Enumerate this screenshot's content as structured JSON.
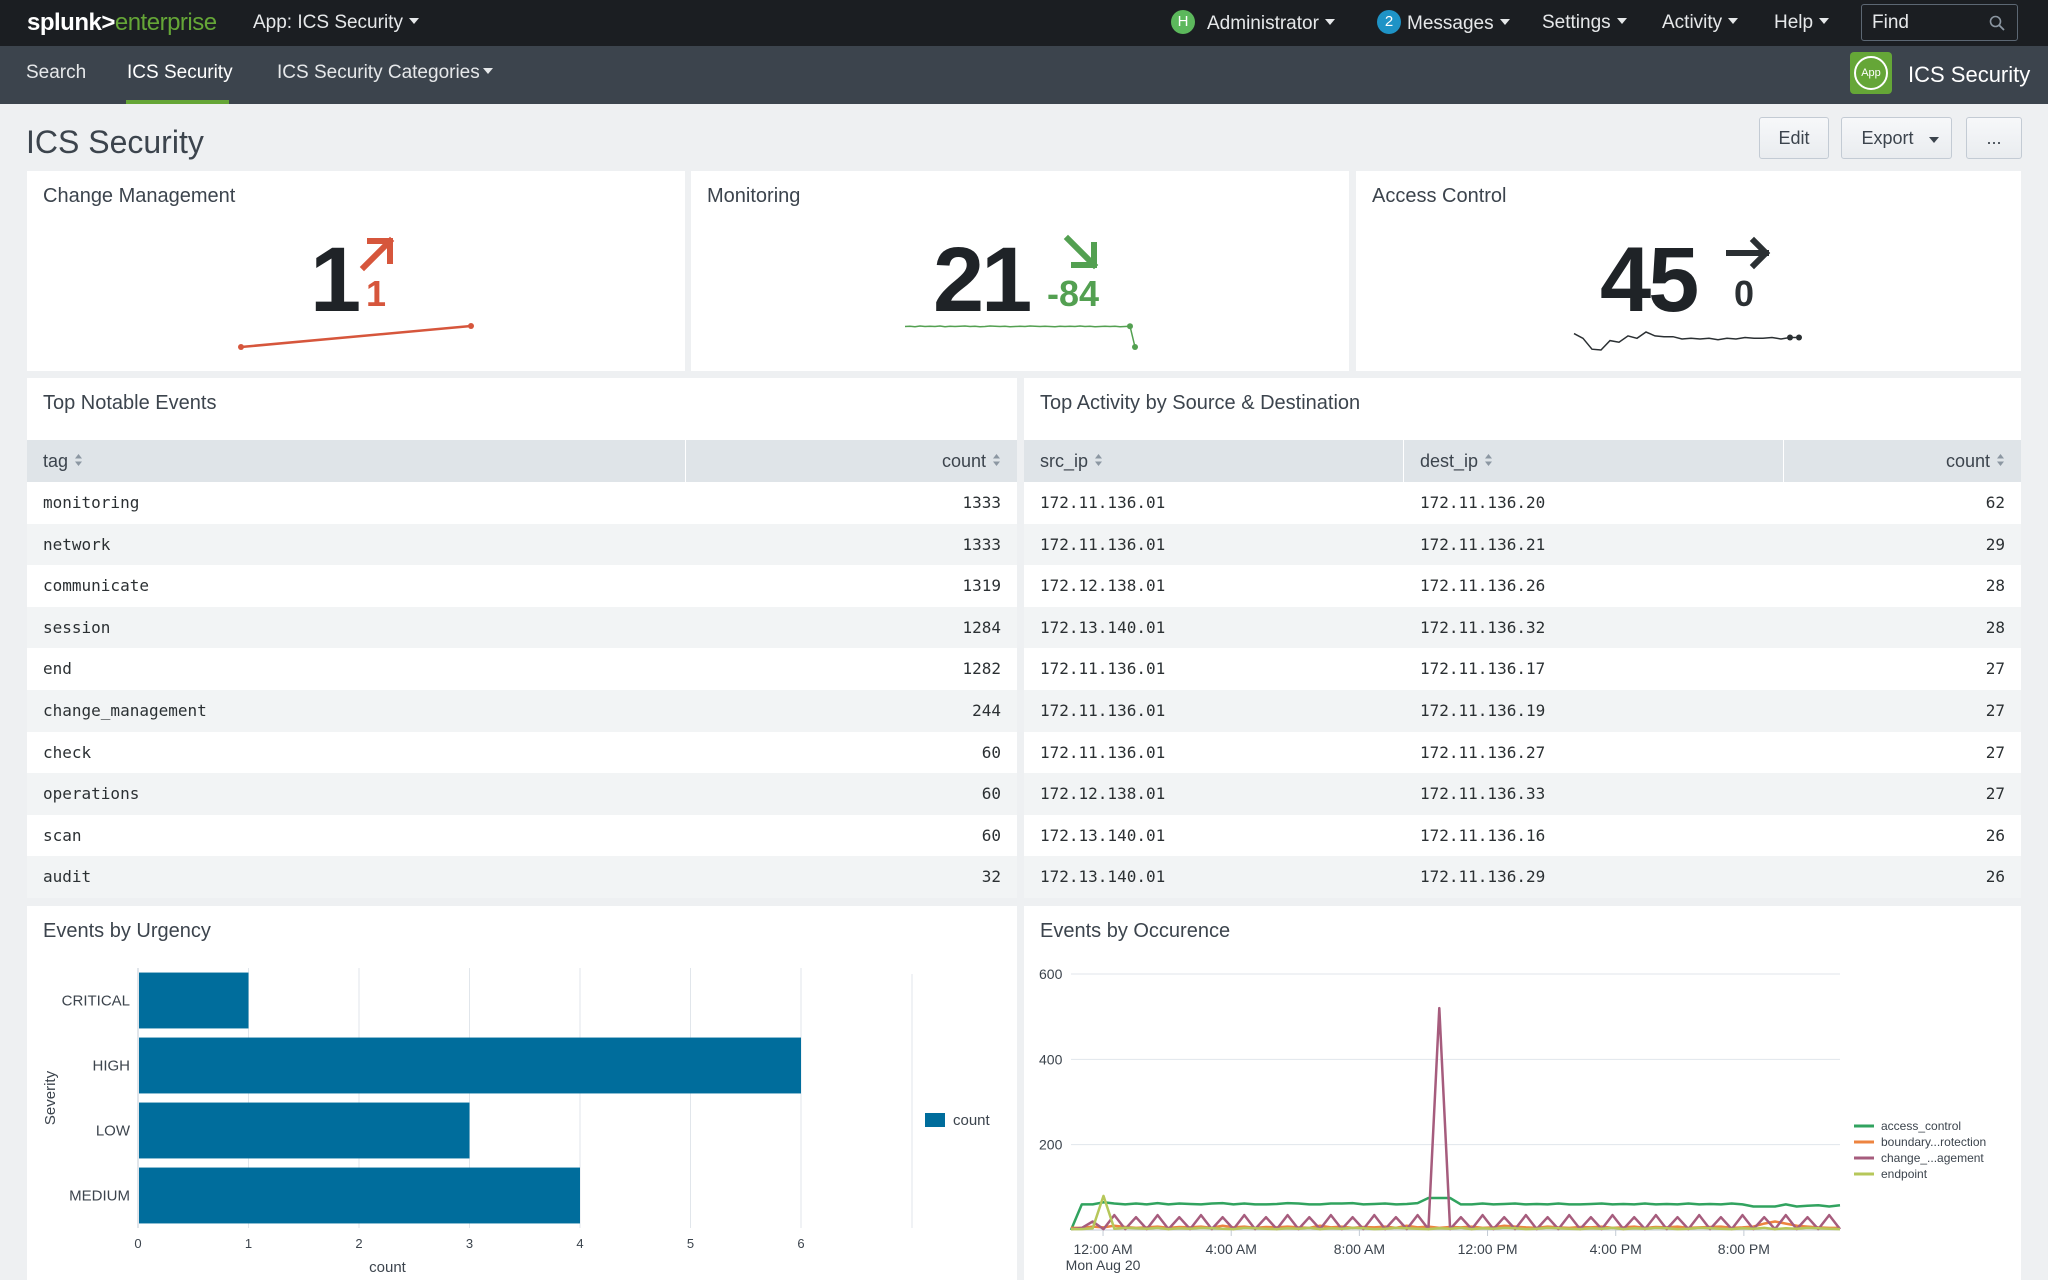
{
  "topbar": {
    "logo_main": "splunk>",
    "logo_sub": "enterprise",
    "app_menu": "App: ICS Security",
    "user_initial": "H",
    "user": "Administrator",
    "messages_count": "2",
    "messages": "Messages",
    "settings": "Settings",
    "activity": "Activity",
    "help": "Help",
    "find_placeholder": "Find"
  },
  "appbar": {
    "nav": [
      "Search",
      "ICS Security",
      "ICS Security Categories"
    ],
    "app_icon_label": "App",
    "app_title": "ICS Security"
  },
  "header": {
    "title": "ICS Security",
    "edit": "Edit",
    "export": "Export",
    "more": "..."
  },
  "single_values": [
    {
      "title": "Change Management",
      "value": "1",
      "delta": "1",
      "trend": "up",
      "color": "#d6563c",
      "sparkline": [
        1,
        2
      ]
    },
    {
      "title": "Monitoring",
      "value": "21",
      "delta": "-84",
      "trend": "down",
      "color": "#53a051",
      "sparkline": [
        104,
        105,
        103,
        106,
        104,
        105,
        104,
        106,
        103,
        105,
        104,
        105,
        106,
        104,
        105,
        103,
        104,
        106,
        105,
        104,
        105,
        103,
        104,
        105,
        104,
        106,
        105,
        104,
        105,
        104,
        103,
        105,
        104,
        105,
        104,
        106,
        104,
        105,
        103,
        104,
        105,
        104,
        105,
        103,
        104,
        105,
        21
      ]
    },
    {
      "title": "Access Control",
      "value": "45",
      "delta": "0",
      "trend": "flat",
      "color": "#2b3033",
      "sparkline": [
        50,
        44,
        30,
        29,
        41,
        39,
        47,
        44,
        52,
        47,
        46,
        46,
        43,
        44,
        43,
        44,
        42,
        44,
        43,
        45,
        44,
        44,
        45,
        43,
        45,
        45
      ]
    }
  ],
  "notable": {
    "title": "Top Notable Events",
    "columns": [
      "tag",
      "count"
    ],
    "rows": [
      [
        "monitoring",
        "1333"
      ],
      [
        "network",
        "1333"
      ],
      [
        "communicate",
        "1319"
      ],
      [
        "session",
        "1284"
      ],
      [
        "end",
        "1282"
      ],
      [
        "change_management",
        "244"
      ],
      [
        "check",
        "60"
      ],
      [
        "operations",
        "60"
      ],
      [
        "scan",
        "60"
      ],
      [
        "audit",
        "32"
      ]
    ]
  },
  "activity": {
    "title": "Top Activity by Source & Destination",
    "columns": [
      "src_ip",
      "dest_ip",
      "count"
    ],
    "rows": [
      [
        "172.11.136.01",
        "172.11.136.20",
        "62"
      ],
      [
        "172.11.136.01",
        "172.11.136.21",
        "29"
      ],
      [
        "172.12.138.01",
        "172.11.136.26",
        "28"
      ],
      [
        "172.13.140.01",
        "172.11.136.32",
        "28"
      ],
      [
        "172.11.136.01",
        "172.11.136.17",
        "27"
      ],
      [
        "172.11.136.01",
        "172.11.136.19",
        "27"
      ],
      [
        "172.11.136.01",
        "172.11.136.27",
        "27"
      ],
      [
        "172.12.138.01",
        "172.11.136.33",
        "27"
      ],
      [
        "172.13.140.01",
        "172.11.136.16",
        "26"
      ],
      [
        "172.13.140.01",
        "172.11.136.29",
        "26"
      ]
    ]
  },
  "chart_data": [
    {
      "type": "bar",
      "orientation": "horizontal",
      "title": "Events by Urgency",
      "categories": [
        "CRITICAL",
        "HIGH",
        "LOW",
        "MEDIUM"
      ],
      "series": [
        {
          "name": "count",
          "values": [
            1,
            6,
            3,
            4
          ],
          "color": "#006d9c"
        }
      ],
      "xlabel": "count",
      "ylabel": "Severity",
      "xlim": [
        0,
        6
      ],
      "xticks": [
        "0",
        "1",
        "2",
        "3",
        "4",
        "5",
        "6"
      ],
      "grid": true,
      "legend": "right"
    },
    {
      "type": "line",
      "title": "Events by Occurence",
      "ylim": [
        0,
        600
      ],
      "yticks": [
        "200",
        "400",
        "600"
      ],
      "xticks": [
        "12:00 AM",
        "4:00 AM",
        "8:00 AM",
        "12:00 PM",
        "4:00 PM",
        "8:00 PM"
      ],
      "xtick_sub": "Mon Aug 20",
      "x_start_hour": -1,
      "x_end_hour": 23,
      "legend": "right",
      "series": [
        {
          "name": "access_control",
          "color": "#31a35f",
          "values": [
            0,
            60,
            60,
            65,
            62,
            60,
            62,
            60,
            63,
            60,
            62,
            61,
            60,
            62,
            63,
            60,
            62,
            60,
            60,
            61,
            63,
            62,
            60,
            60,
            62,
            62,
            63,
            60,
            61,
            62,
            60,
            61,
            63,
            75,
            75,
            75,
            60,
            60,
            62,
            60,
            61,
            62,
            60,
            61,
            60,
            62,
            60,
            60,
            61,
            62,
            60,
            61,
            60,
            62,
            60,
            61,
            60,
            62,
            60,
            61,
            60,
            62,
            60,
            55,
            55,
            55,
            60,
            55,
            57,
            58,
            55,
            58
          ]
        },
        {
          "name": "boundary...rotection",
          "color": "#ed8440",
          "values": [
            5,
            5,
            8,
            6,
            10,
            7,
            5,
            6,
            8,
            5,
            7,
            6,
            8,
            5,
            10,
            6,
            8,
            5,
            7,
            6,
            8,
            6,
            5,
            10,
            6,
            8,
            5,
            7,
            6,
            8,
            5,
            10,
            6,
            8,
            5,
            7,
            6,
            8,
            5,
            6,
            10,
            8,
            6,
            5,
            8,
            6,
            5,
            7,
            6,
            8,
            5,
            6,
            8,
            5,
            7,
            6,
            8,
            5,
            6,
            7,
            8,
            5,
            6,
            8,
            15,
            20,
            15,
            10,
            8,
            6,
            5,
            5
          ]
        },
        {
          "name": "change_...agement",
          "color": "#a65c7d",
          "values": [
            2,
            5,
            20,
            2,
            35,
            2,
            30,
            2,
            35,
            2,
            30,
            2,
            35,
            2,
            30,
            2,
            35,
            2,
            30,
            2,
            35,
            2,
            30,
            2,
            35,
            2,
            30,
            2,
            35,
            2,
            30,
            2,
            35,
            2,
            520,
            2,
            30,
            2,
            35,
            2,
            30,
            2,
            35,
            2,
            30,
            2,
            35,
            2,
            30,
            2,
            35,
            2,
            30,
            2,
            35,
            2,
            30,
            2,
            35,
            2,
            30,
            2,
            35,
            2,
            30,
            2,
            35,
            2,
            30,
            2,
            35,
            2
          ]
        },
        {
          "name": "endpoint",
          "color": "#b6c75a",
          "values": [
            2,
            2,
            4,
            80,
            3,
            5,
            4,
            3,
            5,
            2,
            4,
            3,
            5,
            4,
            3,
            2,
            5,
            4,
            3,
            2,
            4,
            3,
            5,
            2,
            4,
            3,
            5,
            4,
            2,
            3,
            5,
            4,
            3,
            2,
            4,
            3,
            5,
            2,
            4,
            3,
            5,
            4,
            2,
            3,
            5,
            4,
            3,
            2,
            4,
            3,
            5,
            2,
            4,
            3,
            5,
            4,
            2,
            3,
            5,
            4,
            3,
            2,
            4,
            3,
            5,
            2,
            4,
            3,
            5,
            4,
            3,
            2
          ]
        }
      ]
    }
  ]
}
